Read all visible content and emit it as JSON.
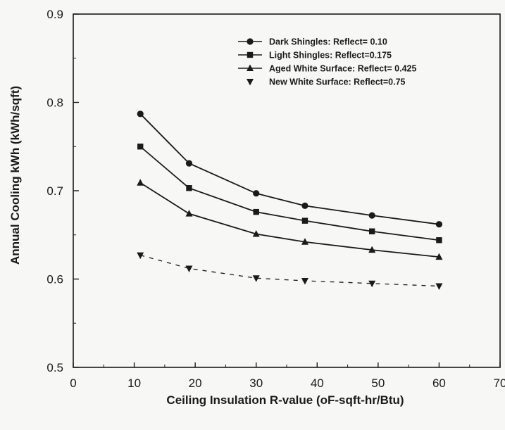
{
  "chart_data": {
    "type": "line",
    "title": "",
    "xlabel": "Ceiling Insulation R-value (oF-sqft-hr/Btu)",
    "ylabel": "Annual Cooling kWh (kWh/sqft)",
    "xlim": [
      0,
      70
    ],
    "ylim": [
      0.5,
      0.9
    ],
    "xticks": [
      "0",
      "10",
      "20",
      "30",
      "40",
      "50",
      "60",
      "70"
    ],
    "yticks": [
      "0.5",
      "0.6",
      "0.7",
      "0.8",
      "0.9"
    ],
    "grid": false,
    "legend_position": "top-right",
    "x": [
      11,
      19,
      30,
      38,
      49,
      60
    ],
    "series": [
      {
        "name": "Dark Shingles: Reflect= 0.10",
        "marker": "circle",
        "line": "solid",
        "values": [
          0.787,
          0.731,
          0.697,
          0.683,
          0.672,
          0.662
        ]
      },
      {
        "name": "Light Shingles: Reflect=0.175",
        "marker": "square",
        "line": "solid",
        "values": [
          0.75,
          0.703,
          0.676,
          0.666,
          0.654,
          0.644
        ]
      },
      {
        "name": "Aged White Surface: Reflect= 0.425",
        "marker": "triangle-up",
        "line": "solid",
        "values": [
          0.709,
          0.674,
          0.651,
          0.642,
          0.633,
          0.625
        ]
      },
      {
        "name": "New White Surface: Reflect=0.75",
        "marker": "triangle-down",
        "line": "dashed",
        "values": [
          0.627,
          0.612,
          0.601,
          0.598,
          0.595,
          0.592
        ]
      }
    ]
  },
  "colors": {
    "ink": "#1a1a1a",
    "background": "#f7f7f5"
  }
}
